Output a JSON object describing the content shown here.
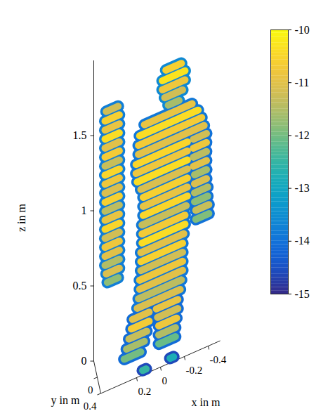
{
  "chart_data": {
    "type": "scatter3d",
    "xlabel": "x in m",
    "ylabel": "y in m",
    "zlabel": "z in m",
    "xlim": [
      -0.5,
      0.5
    ],
    "xticks": [
      0.2,
      0,
      -0.2,
      -0.4
    ],
    "ylim": [
      -0.4,
      0.4
    ],
    "yticks": [
      0,
      0.4
    ],
    "zlim": [
      0,
      2
    ],
    "zticks": [
      0,
      0.5,
      1,
      1.5
    ],
    "colorbar": {
      "lim": [
        -15,
        -10
      ],
      "ticks": [
        -10,
        -11,
        -12,
        -13,
        -14,
        -15
      ]
    },
    "parts": [
      {
        "y": 0.2,
        "edge": -13.8,
        "slices": [
          [
            1.8,
            0.44,
            0.34,
            -11.2
          ],
          [
            1.74,
            0.45,
            0.33,
            -10.6
          ],
          [
            1.68,
            0.45,
            0.33,
            -10.9
          ],
          [
            1.62,
            0.45,
            0.33,
            -10.4
          ],
          [
            1.56,
            0.45,
            0.33,
            -11.0
          ],
          [
            1.5,
            0.45,
            0.33,
            -10.7
          ],
          [
            1.44,
            0.45,
            0.33,
            -11.3
          ],
          [
            1.38,
            0.45,
            0.33,
            -10.5
          ],
          [
            1.32,
            0.45,
            0.33,
            -10.8
          ],
          [
            1.26,
            0.45,
            0.33,
            -11.1
          ],
          [
            1.2,
            0.45,
            0.33,
            -10.6
          ],
          [
            1.14,
            0.45,
            0.33,
            -11.4
          ],
          [
            1.08,
            0.45,
            0.33,
            -10.9
          ],
          [
            1.02,
            0.45,
            0.33,
            -10.5
          ],
          [
            0.96,
            0.45,
            0.33,
            -11.2
          ],
          [
            0.9,
            0.45,
            0.33,
            -10.8
          ],
          [
            0.84,
            0.45,
            0.33,
            -11.0
          ],
          [
            0.78,
            0.45,
            0.33,
            -11.5
          ],
          [
            0.72,
            0.44,
            0.33,
            -11.1
          ],
          [
            0.66,
            0.43,
            0.34,
            -11.8
          ]
        ]
      },
      {
        "y": 0.2,
        "edge": -13.6,
        "slices": [
          [
            1.9,
            -0.06,
            -0.19,
            -10.6
          ],
          [
            1.84,
            -0.03,
            -0.22,
            -10.3
          ],
          [
            1.78,
            -0.03,
            -0.22,
            -10.8
          ],
          [
            1.72,
            -0.05,
            -0.2,
            -11.2
          ],
          [
            1.66,
            -0.08,
            -0.17,
            -11.6
          ]
        ]
      },
      {
        "y": 0.2,
        "edge": -13.9,
        "slices": [
          [
            1.6,
            0.12,
            -0.28,
            -10.9
          ],
          [
            1.54,
            0.16,
            -0.33,
            -10.4
          ],
          [
            1.48,
            0.17,
            -0.36,
            -10.7
          ],
          [
            1.42,
            0.17,
            -0.38,
            -11.0
          ],
          [
            1.36,
            0.19,
            -0.24,
            -10.5
          ],
          [
            1.3,
            0.19,
            -0.24,
            -10.8
          ],
          [
            1.24,
            0.18,
            -0.24,
            -10.4
          ],
          [
            1.18,
            0.15,
            -0.24,
            -11.1
          ],
          [
            1.12,
            0.13,
            -0.24,
            -10.6
          ],
          [
            1.06,
            0.13,
            -0.24,
            -10.9
          ],
          [
            1.0,
            0.13,
            -0.24,
            -10.5
          ],
          [
            0.94,
            0.14,
            -0.23,
            -11.3
          ],
          [
            0.88,
            0.14,
            -0.22,
            -10.7
          ],
          [
            0.82,
            0.14,
            -0.22,
            -10.4
          ],
          [
            0.76,
            0.15,
            -0.21,
            -11.0
          ],
          [
            0.7,
            0.15,
            -0.2,
            -10.6
          ],
          [
            0.64,
            0.15,
            -0.2,
            -11.2
          ],
          [
            0.58,
            0.16,
            -0.2,
            -10.8
          ],
          [
            0.52,
            0.16,
            -0.2,
            -11.0
          ],
          [
            0.46,
            0.17,
            -0.19,
            -11.4
          ],
          [
            0.4,
            0.18,
            -0.18,
            -11.1
          ]
        ]
      },
      {
        "y": 0.2,
        "edge": -14.0,
        "slices": [
          [
            1.36,
            -0.29,
            -0.4,
            -11.2
          ],
          [
            1.3,
            -0.29,
            -0.4,
            -10.8
          ],
          [
            1.24,
            -0.29,
            -0.4,
            -11.4
          ],
          [
            1.18,
            -0.29,
            -0.4,
            -11.0
          ],
          [
            1.12,
            -0.3,
            -0.4,
            -11.6
          ],
          [
            1.06,
            -0.3,
            -0.4,
            -11.1
          ],
          [
            1.0,
            -0.3,
            -0.41,
            -11.5
          ],
          [
            0.94,
            -0.3,
            -0.41,
            -11.8
          ],
          [
            0.88,
            -0.31,
            -0.42,
            -11.3
          ],
          [
            0.82,
            -0.31,
            -0.42,
            -11.9
          ]
        ]
      },
      {
        "y": 0.2,
        "edge": -14.1,
        "slices": [
          [
            0.34,
            0.22,
            0.08,
            -11.0
          ],
          [
            0.28,
            0.23,
            0.08,
            -10.7
          ],
          [
            0.22,
            0.25,
            0.1,
            -11.3
          ],
          [
            0.16,
            0.27,
            0.12,
            -11.6
          ],
          [
            0.1,
            0.29,
            0.15,
            -12.0
          ]
        ]
      },
      {
        "y": 0.2,
        "edge": -14.1,
        "slices": [
          [
            0.34,
            0.02,
            -0.16,
            -10.9
          ],
          [
            0.28,
            0.01,
            -0.16,
            -11.2
          ],
          [
            0.22,
            0,
            -0.15,
            -10.8
          ],
          [
            0.16,
            0,
            -0.14,
            -11.5
          ],
          [
            0.1,
            0,
            -0.14,
            -12.1
          ]
        ]
      },
      {
        "y": 0.4,
        "edge": -14.6,
        "slices": [
          [
            0.03,
            0.15,
            0.12,
            -12.5
          ],
          [
            0.03,
            -0.08,
            -0.11,
            -12.8
          ]
        ]
      }
    ]
  }
}
